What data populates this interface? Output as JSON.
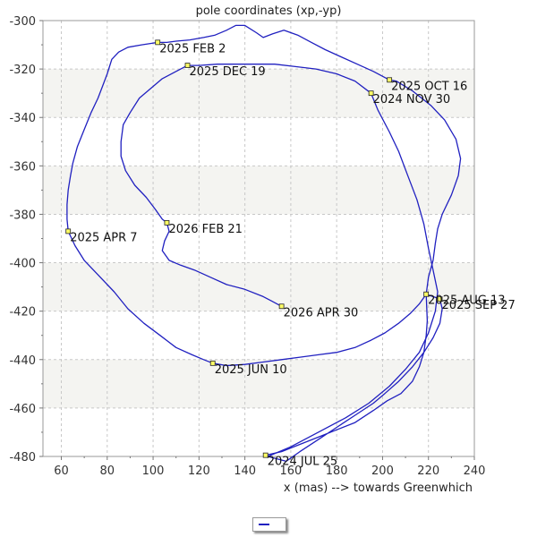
{
  "chart_data": {
    "type": "line",
    "title": "pole coordinates (xp,-yp)",
    "xlabel": "x (mas) --> towards Greenwhich",
    "ylabel": "",
    "xlim": [
      52,
      240
    ],
    "ylim": [
      -480,
      -300
    ],
    "x_ticks": [
      60,
      80,
      100,
      120,
      140,
      160,
      180,
      200,
      220,
      240
    ],
    "y_ticks": [
      -300,
      -320,
      -340,
      -360,
      -380,
      -400,
      -420,
      -440,
      -460,
      -480
    ],
    "grid": true,
    "line_color": "#2020c0",
    "band_color": "#f4f4f1",
    "series": [
      {
        "values": [
          [
            149,
            -479.5
          ],
          [
            156,
            -478
          ],
          [
            164,
            -475
          ],
          [
            172,
            -472
          ],
          [
            180,
            -469
          ],
          [
            188,
            -466
          ],
          [
            196,
            -461
          ],
          [
            202,
            -457
          ],
          [
            208,
            -454
          ],
          [
            213,
            -449
          ],
          [
            216,
            -443
          ],
          [
            218,
            -437
          ],
          [
            219,
            -430
          ],
          [
            219.5,
            -424
          ],
          [
            219,
            -413
          ],
          [
            220,
            -406
          ],
          [
            222,
            -399
          ],
          [
            223,
            -392
          ],
          [
            224,
            -386
          ],
          [
            226,
            -380
          ],
          [
            230,
            -372
          ],
          [
            233,
            -364
          ],
          [
            234,
            -357
          ],
          [
            232,
            -349
          ],
          [
            227,
            -341
          ],
          [
            221,
            -335
          ],
          [
            213,
            -329
          ],
          [
            206,
            -325
          ],
          [
            203,
            -324.5
          ],
          [
            196,
            -321
          ],
          [
            189,
            -318
          ],
          [
            182,
            -315
          ],
          [
            175,
            -312
          ],
          [
            169,
            -309
          ],
          [
            163,
            -306
          ],
          [
            157,
            -304
          ],
          [
            152,
            -305.5
          ],
          [
            148,
            -307
          ],
          [
            145,
            -305
          ],
          [
            140,
            -302
          ],
          [
            136,
            -302
          ],
          [
            132,
            -304
          ],
          [
            127,
            -306
          ],
          [
            122,
            -307
          ],
          [
            116,
            -308
          ],
          [
            110,
            -308.5
          ],
          [
            106,
            -309
          ],
          [
            102,
            -309
          ],
          [
            95,
            -310
          ],
          [
            89,
            -311
          ],
          [
            85,
            -313
          ],
          [
            82,
            -316
          ],
          [
            80,
            -322
          ],
          [
            78,
            -327
          ],
          [
            76,
            -332
          ],
          [
            73,
            -338
          ],
          [
            70,
            -345
          ],
          [
            67,
            -352
          ],
          [
            65,
            -359
          ],
          [
            64,
            -364
          ],
          [
            63,
            -370
          ],
          [
            62.5,
            -376
          ],
          [
            62.5,
            -382
          ],
          [
            63,
            -387
          ],
          [
            66,
            -393
          ],
          [
            70,
            -399
          ],
          [
            76,
            -405
          ],
          [
            83,
            -412
          ],
          [
            89,
            -419
          ],
          [
            96,
            -425
          ],
          [
            103,
            -430
          ],
          [
            110,
            -435
          ],
          [
            117,
            -438
          ],
          [
            122,
            -440
          ],
          [
            126,
            -441.5
          ],
          [
            132,
            -442.5
          ],
          [
            140,
            -442
          ],
          [
            148,
            -441
          ],
          [
            156,
            -440
          ],
          [
            164,
            -439
          ],
          [
            172,
            -438
          ],
          [
            180,
            -437
          ],
          [
            188,
            -435
          ],
          [
            195,
            -432
          ],
          [
            201,
            -429
          ],
          [
            207,
            -425
          ],
          [
            212,
            -421
          ],
          [
            216,
            -417
          ],
          [
            219,
            -413
          ],
          [
            222,
            -414
          ],
          [
            225,
            -415
          ],
          [
            226,
            -419
          ],
          [
            225,
            -425
          ],
          [
            222,
            -431
          ],
          [
            218,
            -437
          ],
          [
            213,
            -443
          ],
          [
            207,
            -449
          ],
          [
            201,
            -454
          ],
          [
            196,
            -458
          ],
          [
            188,
            -463
          ],
          [
            180,
            -468
          ],
          [
            172,
            -473
          ],
          [
            164,
            -478
          ],
          [
            158,
            -482
          ]
        ]
      },
      {
        "values": [
          [
            158,
            -482
          ],
          [
            150,
            -480
          ],
          [
            160,
            -476
          ],
          [
            172,
            -470
          ],
          [
            184,
            -464
          ],
          [
            194,
            -458
          ],
          [
            203,
            -451
          ],
          [
            210,
            -444
          ],
          [
            216,
            -437
          ],
          [
            220,
            -429
          ],
          [
            223,
            -420
          ],
          [
            224,
            -412
          ],
          [
            222,
            -403
          ],
          [
            220,
            -394
          ],
          [
            218,
            -384
          ],
          [
            215,
            -374
          ],
          [
            211,
            -364
          ],
          [
            207,
            -354
          ],
          [
            203,
            -346
          ],
          [
            198,
            -337
          ],
          [
            195,
            -330
          ],
          [
            188,
            -325
          ],
          [
            180,
            -322
          ],
          [
            171,
            -320
          ],
          [
            162,
            -319
          ],
          [
            153,
            -318
          ],
          [
            144,
            -318
          ],
          [
            136,
            -318
          ],
          [
            128,
            -318
          ],
          [
            120,
            -318.5
          ],
          [
            115,
            -318.5
          ],
          [
            110,
            -321
          ],
          [
            104,
            -324
          ],
          [
            99,
            -328
          ],
          [
            94,
            -332
          ],
          [
            90,
            -338
          ],
          [
            87,
            -343
          ],
          [
            86,
            -350
          ],
          [
            86,
            -356
          ],
          [
            88,
            -362
          ],
          [
            92,
            -368
          ],
          [
            97,
            -373
          ],
          [
            101,
            -378
          ],
          [
            104,
            -382
          ],
          [
            106,
            -383.5
          ],
          [
            107,
            -387
          ],
          [
            105,
            -391
          ],
          [
            104,
            -395
          ],
          [
            107,
            -399
          ],
          [
            112,
            -401
          ],
          [
            118,
            -403
          ],
          [
            125,
            -406
          ],
          [
            132,
            -409
          ],
          [
            140,
            -411
          ],
          [
            148,
            -414
          ],
          [
            152,
            -416
          ],
          [
            156,
            -418
          ]
        ]
      }
    ],
    "annotations": [
      {
        "label": "2024 JUL 25",
        "x": 149,
        "y": -479.5
      },
      {
        "label": "2024 NOV 30",
        "x": 195,
        "y": -330
      },
      {
        "label": "2025 FEB 2",
        "x": 102,
        "y": -309
      },
      {
        "label": "2025 APR 7",
        "x": 63,
        "y": -387
      },
      {
        "label": "2025 JUN 10",
        "x": 126,
        "y": -441.5
      },
      {
        "label": "2025 AUG 13",
        "x": 219,
        "y": -413
      },
      {
        "label": "2025 SEP 27",
        "x": 225,
        "y": -415
      },
      {
        "label": "2025 OCT 16",
        "x": 203,
        "y": -324.5
      },
      {
        "label": "2025 DEC 19",
        "x": 115,
        "y": -318.5
      },
      {
        "label": "2026 FEB 21",
        "x": 106,
        "y": -383.5
      },
      {
        "label": "2026 APR 30",
        "x": 156,
        "y": -418
      }
    ],
    "legend": {
      "placement": "bottom-center",
      "entries": [
        ""
      ]
    }
  }
}
